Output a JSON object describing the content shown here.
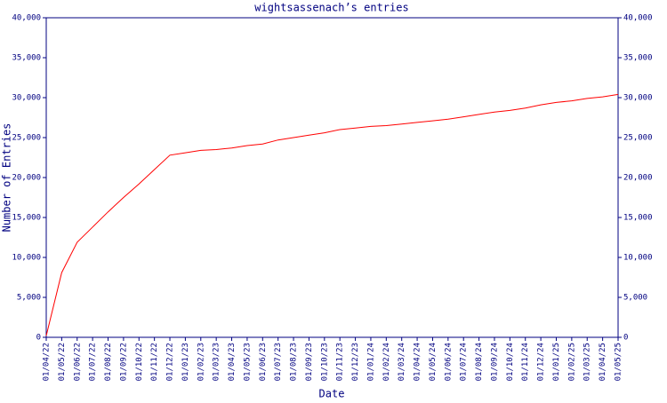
{
  "chart_data": {
    "type": "line",
    "title": "wightsassenach’s entries",
    "x_label": "Date",
    "y_label": "Number of Entries",
    "categories": [
      "01/04/22",
      "01/05/22",
      "01/06/22",
      "01/07/22",
      "01/08/22",
      "01/09/22",
      "01/10/22",
      "01/11/22",
      "01/12/22",
      "01/01/23",
      "01/02/23",
      "01/03/23",
      "01/04/23",
      "01/05/23",
      "01/06/23",
      "01/07/23",
      "01/08/23",
      "01/09/23",
      "01/10/23",
      "01/11/23",
      "01/12/23",
      "01/01/24",
      "01/02/24",
      "01/03/24",
      "01/04/24",
      "01/05/24",
      "01/06/24",
      "01/07/24",
      "01/08/24",
      "01/09/24",
      "01/10/24",
      "01/11/24",
      "01/12/24",
      "01/01/25",
      "01/02/25",
      "01/03/25",
      "01/04/25",
      "01/05/25"
    ],
    "series": [
      {
        "name": "Entries",
        "color": "#ff0000",
        "values": [
          200,
          8100,
          11900,
          13800,
          15700,
          17500,
          19200,
          21000,
          22800,
          23100,
          23400,
          23500,
          23700,
          24000,
          24200,
          24700,
          25000,
          25300,
          25600,
          26000,
          26200,
          26400,
          26500,
          26700,
          26900,
          27100,
          27300,
          27600,
          27900,
          28200,
          28400,
          28700,
          29100,
          29400,
          29600,
          29900,
          30100,
          30400
        ]
      }
    ],
    "ylim": [
      0,
      40000
    ],
    "yticks": [
      0,
      {
        "value": 5000,
        "label": "5,000"
      },
      {
        "value": 10000,
        "label": "10,000"
      },
      {
        "value": 15000,
        "label": "15,000"
      },
      {
        "value": 20000,
        "label": "20,000"
      },
      {
        "value": 25000,
        "label": "25,000"
      },
      {
        "value": 30000,
        "label": "30,000"
      },
      {
        "value": 35000,
        "label": "35,000"
      },
      {
        "value": 40000,
        "label": "40,000"
      }
    ],
    "axis_color": "#000080"
  }
}
